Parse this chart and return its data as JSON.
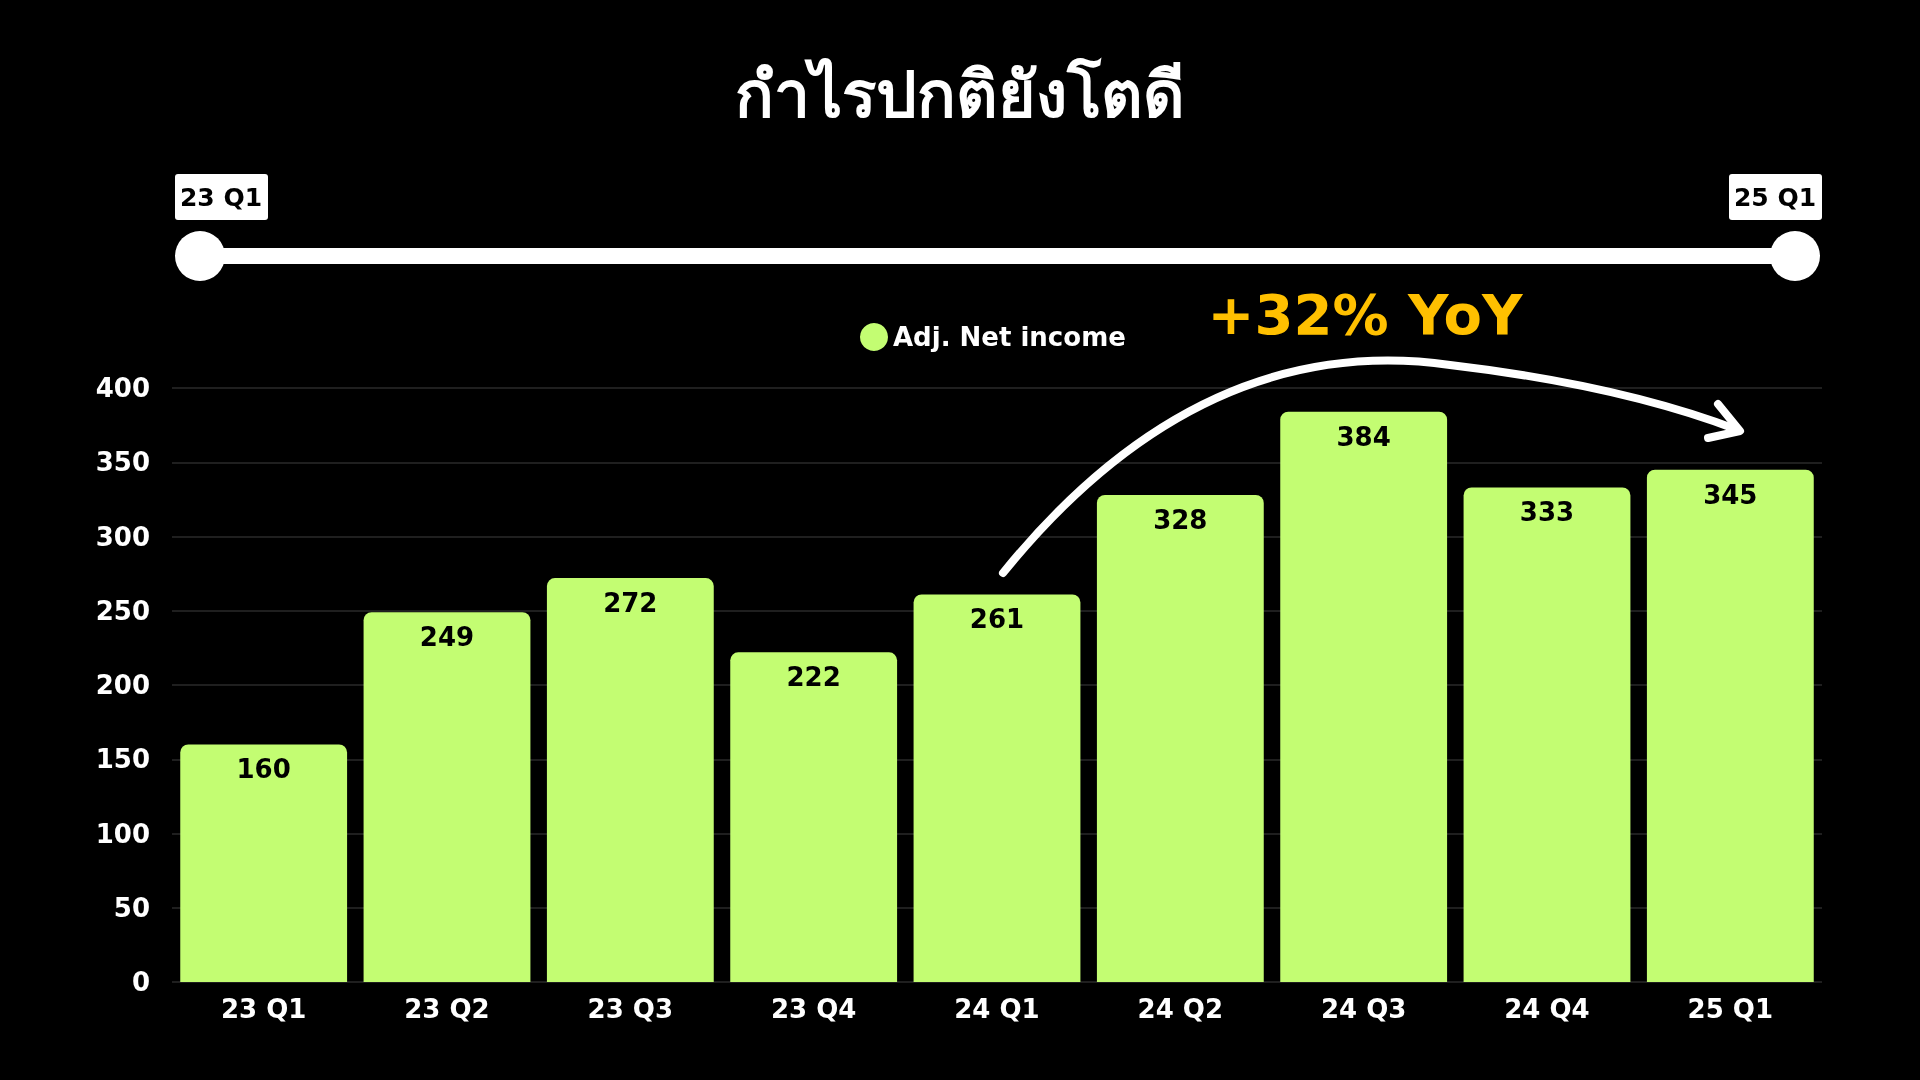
{
  "chart_data": {
    "type": "bar",
    "title": "กำไรปกติยังโตดี",
    "categories": [
      "23 Q1",
      "23 Q2",
      "23 Q3",
      "23 Q4",
      "24 Q1",
      "24 Q2",
      "24 Q3",
      "24 Q4",
      "25 Q1"
    ],
    "series": [
      {
        "name": "Adj. Net income",
        "color": "#c3fd72",
        "values": [
          160,
          249,
          272,
          222,
          261,
          328,
          384,
          333,
          345
        ]
      }
    ],
    "ylim": [
      0,
      400
    ],
    "yticks": [
      0,
      50,
      100,
      150,
      200,
      250,
      300,
      350,
      400
    ],
    "grid": "y",
    "legend": "top",
    "data_labels": true,
    "annotations": [
      "23 Q1",
      "25 Q1",
      "+32% YoY"
    ]
  }
}
